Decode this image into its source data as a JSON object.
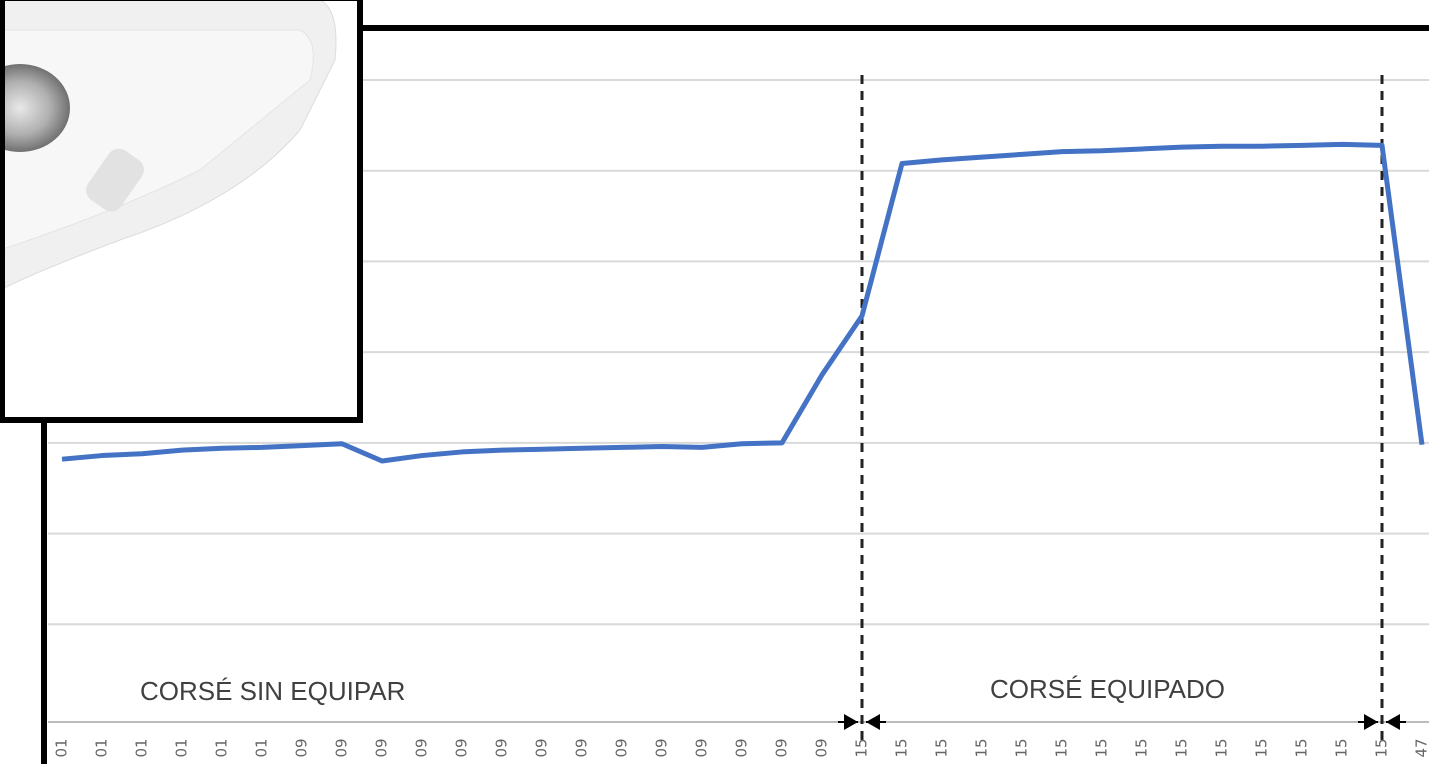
{
  "chart_data": {
    "type": "line",
    "categories": [
      "01",
      "01",
      "01",
      "01",
      "01",
      "01",
      "09",
      "09",
      "09",
      "09",
      "09",
      "09",
      "09",
      "09",
      "09",
      "09",
      "09",
      "09",
      "09",
      "09",
      "15",
      "15",
      "15",
      "15",
      "15",
      "15",
      "15",
      "15",
      "15",
      "15",
      "15",
      "15",
      "15",
      "15",
      "47"
    ],
    "series": [
      {
        "color": "#4472c4",
        "values": [
          2.82,
          2.86,
          2.88,
          2.92,
          2.94,
          2.95,
          2.97,
          2.99,
          2.8,
          2.86,
          2.9,
          2.92,
          2.93,
          2.94,
          2.95,
          2.96,
          2.95,
          2.99,
          3.0,
          3.75,
          4.4,
          6.08,
          6.12,
          6.15,
          6.18,
          6.21,
          6.22,
          6.24,
          6.26,
          6.27,
          6.27,
          6.28,
          6.29,
          6.28,
          2.98
        ]
      }
    ],
    "ylim": [
      0,
      7
    ],
    "yticks": [
      1,
      2,
      3,
      4,
      5,
      6,
      7
    ],
    "grid": true,
    "annotations": [
      "CORSÉ SIN EQUIPAR",
      "CORSÉ EQUIPADO"
    ]
  }
}
